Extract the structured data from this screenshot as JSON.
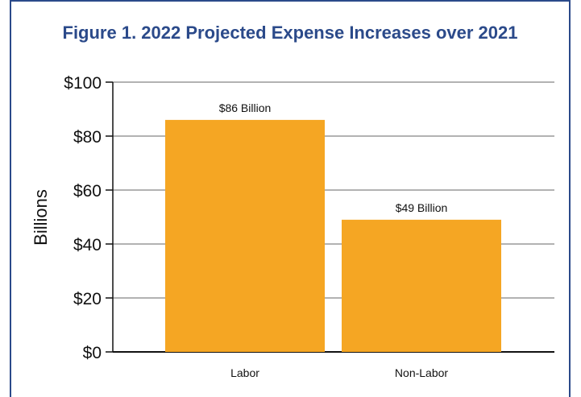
{
  "chart_data": {
    "type": "bar",
    "title": "Figure 1. 2022 Projected Expense Increases over 2021",
    "xlabel": "",
    "ylabel": "Billions",
    "categories": [
      "Labor",
      "Non-Labor"
    ],
    "values": [
      86,
      49
    ],
    "data_labels": [
      "$86 Billion",
      "$49 Billion"
    ],
    "y_ticks": [
      "$0",
      "$20",
      "$40",
      "$60",
      "$80",
      "$100"
    ],
    "ylim": [
      0,
      100
    ],
    "grid": true,
    "bar_color": "#f5a623"
  }
}
